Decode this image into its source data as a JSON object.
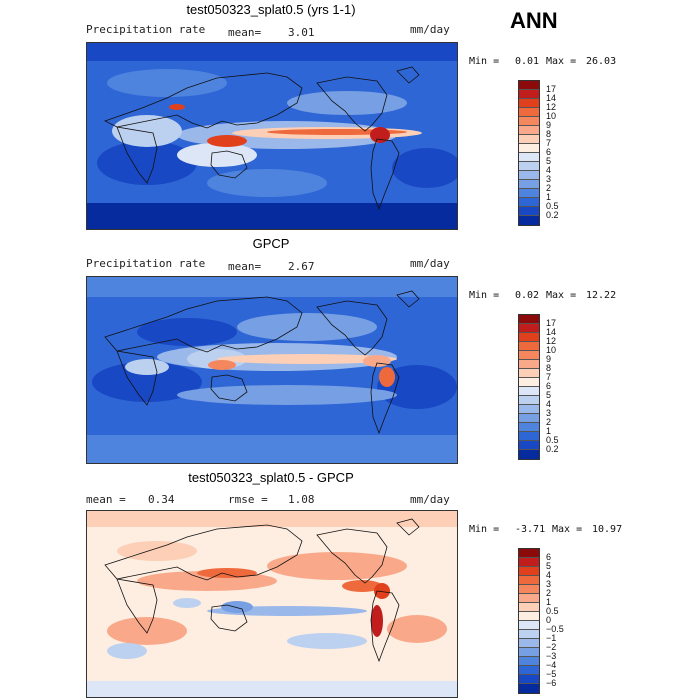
{
  "season": "ANN",
  "panels": [
    {
      "title": "test050323_splat0.5 (yrs 1-1)",
      "left_label": "Precipitation rate",
      "stat1_label": "mean=",
      "stat1_value": "3.01",
      "units": "mm/day",
      "min_label": "Min =",
      "min_value": "0.01",
      "max_label": "Max =",
      "max_value": "26.03",
      "levels": [
        "17",
        "14",
        "12",
        "10",
        "9",
        "8",
        "7",
        "6",
        "5",
        "4",
        "3",
        "2",
        "1",
        "0.5",
        "0.2"
      ],
      "colors": [
        "#8c0a0a",
        "#c11d1d",
        "#e0401c",
        "#ee6a3c",
        "#f5875f",
        "#f9a98a",
        "#fccfb6",
        "#fdeee1",
        "#dce6f6",
        "#bcd0f0",
        "#9ab8ea",
        "#769fe4",
        "#4f84de",
        "#2f66d6",
        "#1948c4",
        "#062b9f"
      ]
    },
    {
      "title": "GPCP",
      "left_label": "Precipitation rate",
      "stat1_label": "mean=",
      "stat1_value": "2.67",
      "units": "mm/day",
      "min_label": "Min =",
      "min_value": "0.02",
      "max_label": "Max =",
      "max_value": "12.22",
      "levels": [
        "17",
        "14",
        "12",
        "10",
        "9",
        "8",
        "7",
        "6",
        "5",
        "4",
        "3",
        "2",
        "1",
        "0.5",
        "0.2"
      ],
      "colors": [
        "#8c0a0a",
        "#c11d1d",
        "#e0401c",
        "#ee6a3c",
        "#f5875f",
        "#f9a98a",
        "#fccfb6",
        "#fdeee1",
        "#dce6f6",
        "#bcd0f0",
        "#9ab8ea",
        "#769fe4",
        "#4f84de",
        "#2f66d6",
        "#1948c4",
        "#062b9f"
      ]
    },
    {
      "title": "test050323_splat0.5 - GPCP",
      "stat1_label": "mean =",
      "stat1_value": "0.34",
      "stat2_label": "rmse =",
      "stat2_value": "1.08",
      "units": "mm/day",
      "min_label": "Min =",
      "min_value": "-3.71",
      "max_label": "Max =",
      "max_value": "10.97",
      "levels": [
        "6",
        "5",
        "4",
        "3",
        "2",
        "1",
        "0.5",
        "0",
        "−0.5",
        "−1",
        "−2",
        "−3",
        "−4",
        "−5",
        "−6"
      ],
      "colors": [
        "#8c0a0a",
        "#c11d1d",
        "#e0401c",
        "#ee6a3c",
        "#f5875f",
        "#f9a98a",
        "#fccfb6",
        "#fdeee1",
        "#dce6f6",
        "#bcd0f0",
        "#9ab8ea",
        "#769fe4",
        "#4f84de",
        "#2f66d6",
        "#1948c4",
        "#062b9f"
      ]
    }
  ]
}
